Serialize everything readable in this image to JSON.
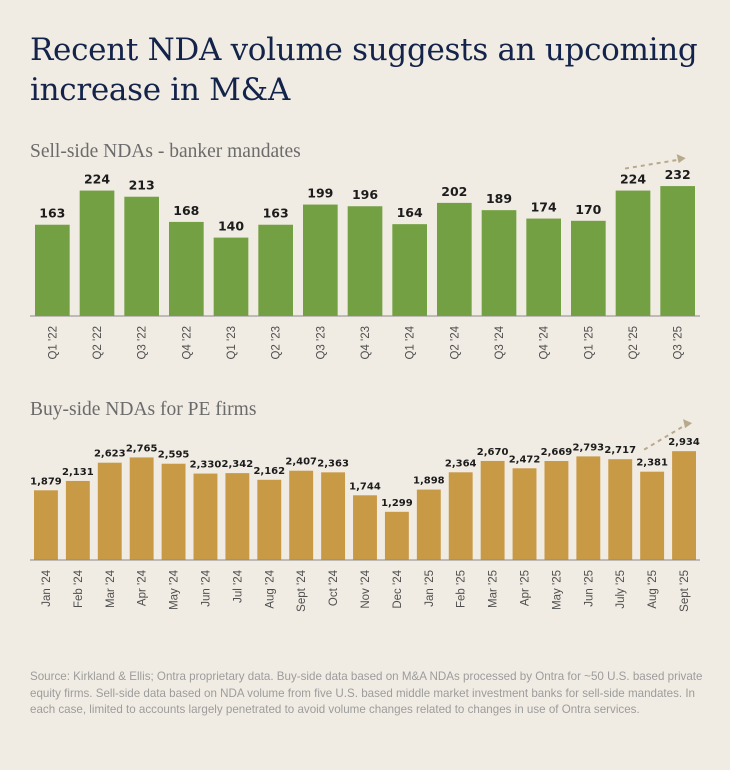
{
  "title": "Recent NDA volume suggests an upcoming increase in M&A",
  "colors": {
    "background": "#f1ece3",
    "title": "#13234a",
    "sell_side_bar": "#73a043",
    "buy_side_bar": "#c99a46",
    "arrow": "#b7a98b"
  },
  "chart_data": [
    {
      "type": "bar",
      "title": "Sell-side NDAs - banker mandates",
      "categories": [
        "Q1 '22",
        "Q2 '22",
        "Q3 '22",
        "Q4 '22",
        "Q1 '23",
        "Q2 '23",
        "Q3 '23",
        "Q4 '23",
        "Q1 '24",
        "Q2 '24",
        "Q3 '24",
        "Q4 '24",
        "Q1 '25",
        "Q2 '25",
        "Q3 '25"
      ],
      "values": [
        163,
        224,
        213,
        168,
        140,
        163,
        199,
        196,
        164,
        202,
        189,
        174,
        170,
        224,
        232
      ],
      "value_labels": [
        "163",
        "224",
        "213",
        "168",
        "140",
        "163",
        "199",
        "196",
        "164",
        "202",
        "189",
        "174",
        "170",
        "224",
        "232"
      ],
      "ylim": [
        0,
        250
      ],
      "xlabel": "",
      "ylabel": "",
      "annotation": "upward trend arrow over Q2 '25 – Q3 '25"
    },
    {
      "type": "bar",
      "title": "Buy-side NDAs for PE firms",
      "categories": [
        "Jan '24",
        "Feb '24",
        "Mar '24",
        "Apr '24",
        "May '24",
        "Jun '24",
        "Jul '24",
        "Aug '24",
        "Sept '24",
        "Oct '24",
        "Nov '24",
        "Dec '24",
        "Jan '25",
        "Feb '25",
        "Mar '25",
        "Apr '25",
        "May '25",
        "Jun '25",
        "July '25",
        "Aug '25",
        "Sept '25"
      ],
      "values": [
        1879,
        2131,
        2623,
        2765,
        2595,
        2330,
        2342,
        2162,
        2407,
        2363,
        1744,
        1299,
        1898,
        2364,
        2670,
        2472,
        2669,
        2793,
        2717,
        2381,
        2934
      ],
      "value_labels": [
        "1,879",
        "2,131",
        "2,623",
        "2,765",
        "2,595",
        "2,330",
        "2,342",
        "2,162",
        "2,407",
        "2,363",
        "1,744",
        "1,299",
        "1,898",
        "2,364",
        "2,670",
        "2,472",
        "2,669",
        "2,793",
        "2,717",
        "2,381",
        "2,934"
      ],
      "ylim": [
        0,
        3100
      ],
      "xlabel": "",
      "ylabel": "",
      "annotation": "upward trend arrow over Aug '25 – Sept '25"
    }
  ],
  "source": "Source: Kirkland & Ellis; Ontra proprietary data. Buy-side data based on M&A NDAs processed by Ontra for ~50 U.S. based private equity firms. Sell-side data based on NDA volume from five U.S. based middle market investment banks for sell-side mandates. In each case, limited to accounts largely penetrated to avoid volume changes related to changes in use of Ontra services."
}
